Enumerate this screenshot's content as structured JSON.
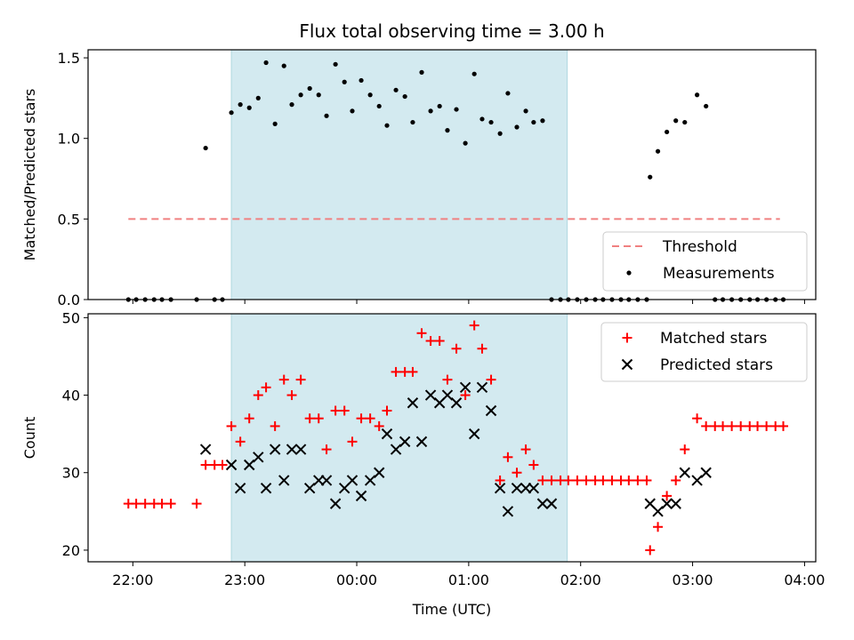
{
  "figure_title": "Flux total observing time = 3.00 h",
  "chart_data": [
    {
      "type": "scatter",
      "panel": "top",
      "title": "Flux total observing time = 3.00 h",
      "xlabel": "",
      "ylabel": "Matched/Predicted stars",
      "ylim": [
        0,
        1.55
      ],
      "yticks": [
        0.0,
        0.5,
        1.0,
        1.5
      ],
      "yticklabels": [
        "0.0",
        "0.5",
        "1.0",
        "1.5"
      ],
      "xlim_hours": [
        21.6,
        28.1
      ],
      "shaded_span_hours": [
        22.88,
        25.88
      ],
      "legend_position": "lower right",
      "threshold": {
        "name": "Threshold",
        "value": 0.5,
        "x_hours": [
          21.96,
          27.78
        ],
        "color": "#f08080"
      },
      "measurements": {
        "name": "Measurements",
        "color": "#000000",
        "x_hours": [
          21.96,
          22.03,
          22.11,
          22.19,
          22.26,
          22.34,
          22.57,
          22.65,
          22.73,
          22.8,
          22.88,
          22.96,
          23.04,
          23.12,
          23.19,
          23.27,
          23.35,
          23.42,
          23.5,
          23.58,
          23.66,
          23.73,
          23.81,
          23.89,
          23.96,
          24.04,
          24.12,
          24.2,
          24.27,
          24.35,
          24.43,
          24.5,
          24.58,
          24.66,
          24.74,
          24.81,
          24.89,
          24.97,
          25.05,
          25.12,
          25.2,
          25.28,
          25.35,
          25.43,
          25.51,
          25.58,
          25.66,
          25.74,
          25.82,
          25.89,
          25.97,
          26.05,
          26.13,
          26.2,
          26.28,
          26.36,
          26.43,
          26.51,
          26.59,
          26.62,
          26.69,
          26.77,
          26.85,
          26.93,
          27.04,
          27.12,
          27.2,
          27.27,
          27.35,
          27.43,
          27.51,
          27.58,
          27.66,
          27.74,
          27.81
        ],
        "y": [
          0.0,
          0.0,
          0.0,
          0.0,
          0.0,
          0.0,
          0.0,
          0.94,
          0.0,
          0.0,
          1.16,
          1.21,
          1.19,
          1.25,
          1.47,
          1.09,
          1.45,
          1.21,
          1.27,
          1.31,
          1.27,
          1.14,
          1.46,
          1.35,
          1.17,
          1.36,
          1.27,
          1.2,
          1.08,
          1.3,
          1.26,
          1.1,
          1.41,
          1.17,
          1.2,
          1.05,
          1.18,
          0.97,
          1.4,
          1.12,
          1.1,
          1.03,
          1.28,
          1.07,
          1.17,
          1.1,
          1.11,
          0.0,
          0.0,
          0.0,
          0.0,
          0.0,
          0.0,
          0.0,
          0.0,
          0.0,
          0.0,
          0.0,
          0.0,
          0.76,
          0.92,
          1.04,
          1.11,
          1.1,
          1.27,
          1.2,
          0.0,
          0.0,
          0.0,
          0.0,
          0.0,
          0.0,
          0.0,
          0.0,
          0.0
        ]
      }
    },
    {
      "type": "scatter",
      "panel": "bottom",
      "xlabel": "Time (UTC)",
      "ylabel": "Count",
      "ylim": [
        18.5,
        50.5
      ],
      "yticks": [
        20,
        30,
        40,
        50
      ],
      "yticklabels": [
        "20",
        "30",
        "40",
        "50"
      ],
      "xlim_hours": [
        21.6,
        28.1
      ],
      "xticks_hours": [
        22,
        23,
        24,
        25,
        26,
        27,
        28
      ],
      "xticklabels": [
        "22:00",
        "23:00",
        "00:00",
        "01:00",
        "02:00",
        "03:00",
        "04:00"
      ],
      "shaded_span_hours": [
        22.88,
        25.88
      ],
      "legend_position": "upper right",
      "series": [
        {
          "name": "Matched stars",
          "marker": "+",
          "color": "#ff0000",
          "x_hours": [
            21.96,
            22.03,
            22.11,
            22.19,
            22.26,
            22.34,
            22.57,
            22.65,
            22.73,
            22.8,
            22.88,
            22.96,
            23.04,
            23.12,
            23.19,
            23.27,
            23.35,
            23.42,
            23.5,
            23.58,
            23.66,
            23.73,
            23.81,
            23.89,
            23.96,
            24.04,
            24.12,
            24.2,
            24.27,
            24.35,
            24.43,
            24.5,
            24.58,
            24.66,
            24.74,
            24.81,
            24.89,
            24.97,
            25.05,
            25.12,
            25.2,
            25.28,
            25.35,
            25.43,
            25.51,
            25.58,
            25.66,
            25.74,
            25.82,
            25.89,
            25.97,
            26.05,
            26.13,
            26.2,
            26.28,
            26.36,
            26.43,
            26.51,
            26.59,
            26.62,
            26.69,
            26.77,
            26.85,
            26.93,
            27.04,
            27.12,
            27.2,
            27.27,
            27.35,
            27.43,
            27.51,
            27.58,
            27.66,
            27.74,
            27.81
          ],
          "y": [
            26,
            26,
            26,
            26,
            26,
            26,
            26,
            31,
            31,
            31,
            36,
            34,
            37,
            40,
            41,
            36,
            42,
            40,
            42,
            37,
            37,
            33,
            38,
            38,
            34,
            37,
            37,
            36,
            38,
            43,
            43,
            43,
            48,
            47,
            47,
            42,
            46,
            40,
            49,
            46,
            42,
            29,
            32,
            30,
            33,
            31,
            29,
            29,
            29,
            29,
            29,
            29,
            29,
            29,
            29,
            29,
            29,
            29,
            29,
            20,
            23,
            27,
            29,
            33,
            37,
            36,
            36,
            36,
            36,
            36,
            36,
            36,
            36,
            36,
            36
          ]
        },
        {
          "name": "Predicted stars",
          "marker": "x",
          "color": "#000000",
          "x_hours": [
            22.65,
            22.88,
            22.96,
            23.04,
            23.12,
            23.19,
            23.27,
            23.35,
            23.42,
            23.5,
            23.58,
            23.66,
            23.73,
            23.81,
            23.89,
            23.96,
            24.04,
            24.12,
            24.2,
            24.27,
            24.35,
            24.43,
            24.5,
            24.58,
            24.66,
            24.74,
            24.81,
            24.89,
            24.97,
            25.05,
            25.12,
            25.2,
            25.28,
            25.35,
            25.43,
            25.51,
            25.58,
            25.66,
            25.74,
            26.62,
            26.69,
            26.77,
            26.85,
            26.93,
            27.04,
            27.12
          ],
          "y": [
            33,
            31,
            28,
            31,
            32,
            28,
            33,
            29,
            33,
            33,
            28,
            29,
            29,
            26,
            28,
            29,
            27,
            29,
            30,
            35,
            33,
            34,
            39,
            34,
            40,
            39,
            40,
            39,
            41,
            35,
            41,
            38,
            28,
            25,
            28,
            28,
            28,
            26,
            26,
            26,
            25,
            26,
            26,
            30,
            29,
            30
          ]
        }
      ]
    }
  ]
}
